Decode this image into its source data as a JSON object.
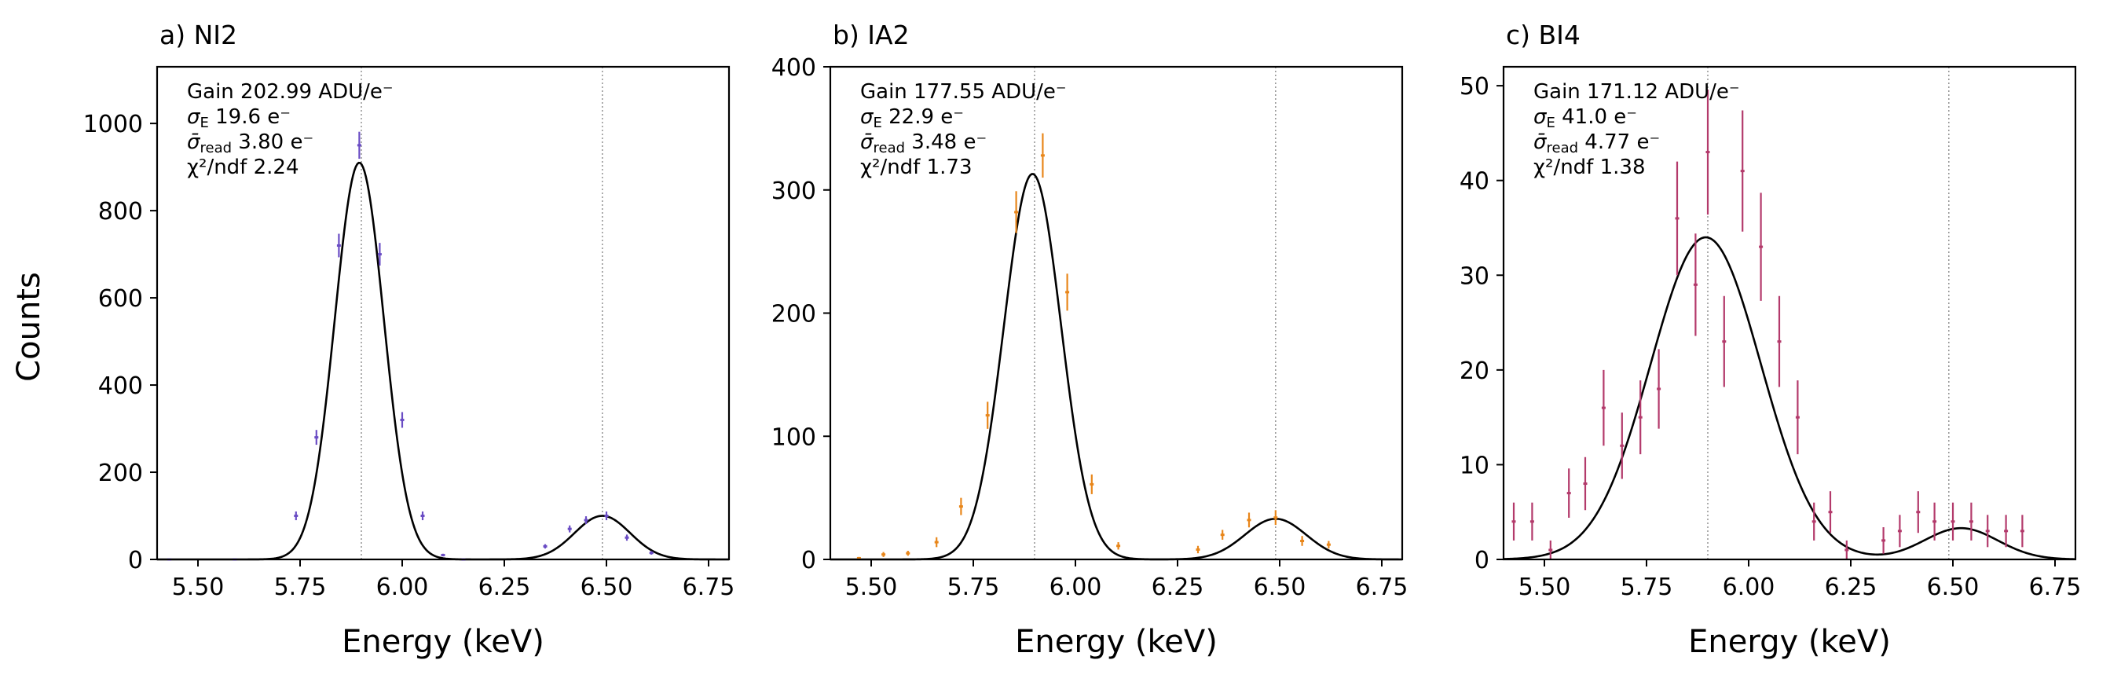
{
  "chart_data": [
    {
      "type": "scatter",
      "title": "a) NI2",
      "xlabel": "Energy (keV)",
      "ylabel": "Counts",
      "xlim": [
        5.4,
        6.8
      ],
      "ylim": [
        0,
        1130
      ],
      "xticks": [
        5.5,
        5.75,
        6.0,
        6.25,
        6.5,
        6.75
      ],
      "xtick_labels": [
        "5.50",
        "5.75",
        "6.00",
        "6.25",
        "6.50",
        "6.75"
      ],
      "yticks": [
        0,
        200,
        400,
        600,
        800,
        1000
      ],
      "ytick_labels": [
        "0",
        "200",
        "400",
        "600",
        "800",
        "1000"
      ],
      "reference_lines_x": [
        5.9,
        6.49
      ],
      "marker_color": "#6a4cc4",
      "annotations": {
        "gain": "Gain 202.99 ADU/e⁻",
        "sigma_e_symbol": "σ",
        "sigma_e_sub": "E",
        "sigma_e_value": " 19.6 e⁻",
        "sigma_read_symbol": "σ̄",
        "sigma_read_sub": "read",
        "sigma_read_value": " 3.80 e⁻",
        "chi2": "χ²/ndf 2.24"
      },
      "fit": {
        "components": [
          {
            "amp": 910,
            "mu": 5.895,
            "sigma": 0.06
          },
          {
            "amp": 100,
            "mu": 6.49,
            "sigma": 0.068
          }
        ]
      },
      "series": [
        {
          "name": "data",
          "x": [
            5.43,
            5.59,
            5.74,
            5.79,
            5.845,
            5.895,
            5.945,
            6.0,
            6.05,
            6.1,
            6.15,
            6.35,
            6.41,
            6.45,
            6.5,
            6.55,
            6.61
          ],
          "y": [
            0,
            0,
            100,
            280,
            720,
            950,
            700,
            320,
            100,
            10,
            0,
            30,
            70,
            90,
            100,
            50,
            15
          ],
          "yerr": [
            2,
            2,
            10,
            17,
            27,
            31,
            26,
            18,
            10,
            3,
            2,
            5,
            8,
            9,
            10,
            7,
            4
          ]
        }
      ]
    },
    {
      "type": "scatter",
      "title": "b) IA2",
      "xlabel": "Energy (keV)",
      "ylabel": "",
      "xlim": [
        5.4,
        6.8
      ],
      "ylim": [
        0,
        400
      ],
      "xticks": [
        5.5,
        5.75,
        6.0,
        6.25,
        6.5,
        6.75
      ],
      "xtick_labels": [
        "5.50",
        "5.75",
        "6.00",
        "6.25",
        "6.50",
        "6.75"
      ],
      "yticks": [
        0,
        100,
        200,
        300,
        400
      ],
      "ytick_labels": [
        "0",
        "100",
        "200",
        "300",
        "400"
      ],
      "reference_lines_x": [
        5.9,
        6.49
      ],
      "marker_color": "#e8861a",
      "annotations": {
        "gain": "Gain 177.55 ADU/e⁻",
        "sigma_e_symbol": "σ",
        "sigma_e_sub": "E",
        "sigma_e_value": " 22.9 e⁻",
        "sigma_read_symbol": "σ̄",
        "sigma_read_sub": "read",
        "sigma_read_value": " 3.48 e⁻",
        "chi2": "χ²/ndf 1.73"
      },
      "fit": {
        "components": [
          {
            "amp": 313,
            "mu": 5.895,
            "sigma": 0.07
          },
          {
            "amp": 33,
            "mu": 6.49,
            "sigma": 0.075
          }
        ]
      },
      "series": [
        {
          "name": "data",
          "x": [
            5.47,
            5.53,
            5.59,
            5.66,
            5.72,
            5.785,
            5.855,
            5.92,
            5.98,
            6.04,
            6.105,
            6.3,
            6.36,
            6.425,
            6.49,
            6.555,
            6.62
          ],
          "y": [
            1,
            4,
            5,
            14,
            43,
            117,
            282,
            328,
            217,
            61,
            11,
            8,
            20,
            32,
            34,
            15,
            12
          ],
          "yerr": [
            1,
            2,
            2,
            4,
            7,
            11,
            17,
            18,
            15,
            8,
            3,
            3,
            4,
            6,
            6,
            4,
            3
          ]
        }
      ]
    },
    {
      "type": "scatter",
      "title": "c) BI4",
      "xlabel": "Energy (keV)",
      "ylabel": "",
      "xlim": [
        5.4,
        6.8
      ],
      "ylim": [
        0,
        52
      ],
      "xticks": [
        5.5,
        5.75,
        6.0,
        6.25,
        6.5,
        6.75
      ],
      "xtick_labels": [
        "5.50",
        "5.75",
        "6.00",
        "6.25",
        "6.50",
        "6.75"
      ],
      "yticks": [
        0,
        10,
        20,
        30,
        40,
        50
      ],
      "ytick_labels": [
        "0",
        "10",
        "20",
        "30",
        "40",
        "50"
      ],
      "reference_lines_x": [
        5.9,
        6.49
      ],
      "marker_color": "#b33a6b",
      "annotations": {
        "gain": "Gain 171.12 ADU/e⁻",
        "sigma_e_symbol": "σ",
        "sigma_e_sub": "E",
        "sigma_e_value": " 41.0 e⁻",
        "sigma_read_symbol": "σ̄",
        "sigma_read_sub": "read",
        "sigma_read_value": " 4.77 e⁻",
        "chi2": "χ²/ndf 1.38"
      },
      "fit": {
        "components": [
          {
            "amp": 34,
            "mu": 5.895,
            "sigma": 0.135
          },
          {
            "amp": 3.3,
            "mu": 6.52,
            "sigma": 0.09
          }
        ]
      },
      "series": [
        {
          "name": "data",
          "x": [
            5.425,
            5.47,
            5.515,
            5.56,
            5.6,
            5.645,
            5.69,
            5.735,
            5.78,
            5.825,
            5.87,
            5.9,
            5.94,
            5.985,
            6.03,
            6.075,
            6.12,
            6.16,
            6.2,
            6.24,
            6.33,
            6.37,
            6.415,
            6.455,
            6.5,
            6.545,
            6.585,
            6.63,
            6.67
          ],
          "y": [
            4,
            4,
            1,
            7,
            8,
            16,
            12,
            15,
            18,
            36,
            29,
            43,
            23,
            41,
            33,
            23,
            15,
            4,
            5,
            1,
            2,
            3,
            5,
            4,
            4,
            4,
            3,
            3,
            3
          ],
          "yerr": [
            2,
            2,
            1,
            2.6,
            2.8,
            4,
            3.5,
            3.9,
            4.2,
            6,
            5.4,
            6.6,
            4.8,
            6.4,
            5.7,
            4.8,
            3.9,
            2,
            2.2,
            1,
            1.4,
            1.7,
            2.2,
            2,
            2,
            2,
            1.7,
            1.7,
            1.7
          ]
        }
      ]
    }
  ]
}
